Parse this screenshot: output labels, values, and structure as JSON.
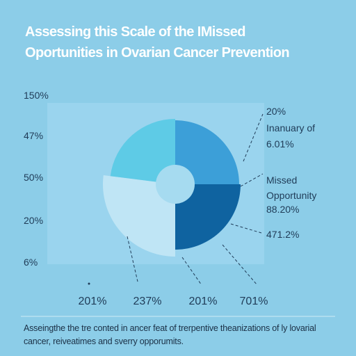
{
  "chart_data": {
    "type": "pie",
    "title_lines": [
      "Assessing this Scale of the IMissed",
      "Oportunities in Ovarian Cancer Prevention"
    ],
    "side_labels": [
      "150%",
      "47%",
      "50%",
      "20%",
      "6%"
    ],
    "annotations": [
      [
        "20%",
        "Inanuary of",
        "6.01%"
      ],
      [
        "Missed",
        "Opportunity",
        "88.20%"
      ],
      [
        "471.2%"
      ]
    ],
    "bottom_labels": [
      "201%",
      "237%",
      "201%",
      "701%"
    ],
    "values": [
      25,
      25,
      27,
      23
    ],
    "colors": [
      "#3c9fd8",
      "#0f63a0",
      "#bfe5f5",
      "#5ecbe6"
    ],
    "caption_lines": [
      "Asseingthe the tre conted in ancer feat of trerpentive theanizations of ly lovarial",
      "cancer, reiveatimes and sverry opporumits."
    ]
  }
}
